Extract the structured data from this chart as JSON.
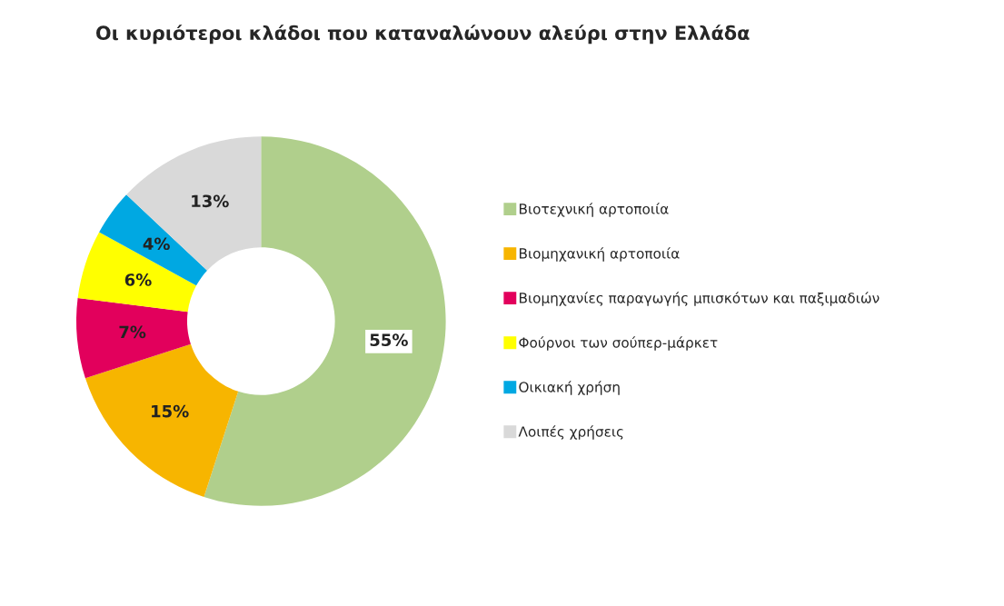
{
  "chart_data": {
    "type": "donut",
    "title": "Οι κυριότεροι κλάδοι που καταναλώνουν αλεύρι στην Ελλάδα",
    "categories": [
      "Βιοτεχνική αρτοποιία",
      "Βιομηχανική αρτοποιία",
      "Βιομηχανίες παραγωγής μπισκότων και παξιμαδιών",
      "Φούρνοι των σούπερ-μάρκετ",
      "Οικιακή χρήση",
      "Λοιπές χρήσεις"
    ],
    "values": [
      55,
      15,
      7,
      6,
      4,
      13
    ],
    "colors": [
      "#b0cf8c",
      "#f7b500",
      "#e2005c",
      "#ffff00",
      "#00a8e2",
      "#d9d9d9"
    ],
    "value_labels": [
      "55%",
      "15%",
      "7%",
      "6%",
      "4%",
      "13%"
    ],
    "legend": "right"
  }
}
